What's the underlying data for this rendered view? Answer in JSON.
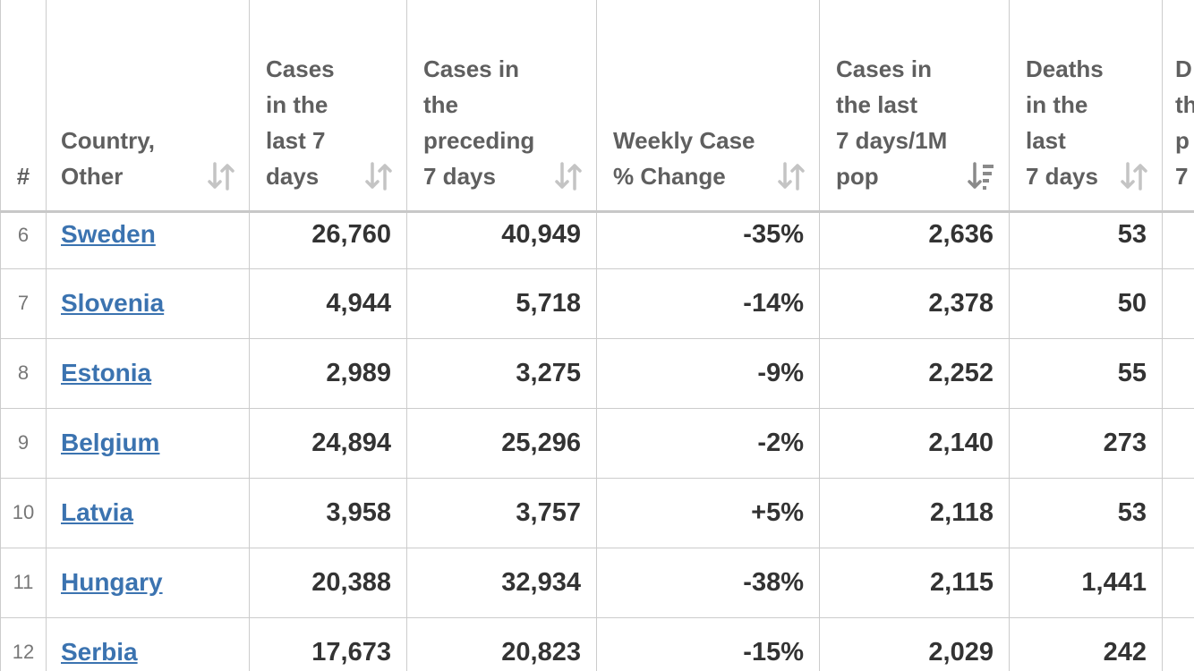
{
  "columns": {
    "index": "#",
    "country": [
      "Country,",
      "Other"
    ],
    "cases7": [
      "Cases",
      "in the",
      "last 7",
      "days"
    ],
    "casesPrev7": [
      "Cases in",
      "the",
      "preceding",
      "7 days"
    ],
    "weeklyChange": [
      "Weekly Case",
      "% Change"
    ],
    "casesPer1M": [
      "Cases in",
      "the last",
      "7 days/1M",
      "pop"
    ],
    "deaths7": [
      "Deaths",
      "in the",
      "last",
      "7 days"
    ],
    "cutoff": [
      "D",
      "th",
      "p",
      "7"
    ]
  },
  "rows": [
    {
      "idx": "6",
      "country": "Sweden",
      "cases7": "26,760",
      "casesPrev7": "40,949",
      "change": "-35%",
      "per1M": "2,636",
      "deaths7": "53"
    },
    {
      "idx": "7",
      "country": "Slovenia",
      "cases7": "4,944",
      "casesPrev7": "5,718",
      "change": "-14%",
      "per1M": "2,378",
      "deaths7": "50"
    },
    {
      "idx": "8",
      "country": "Estonia",
      "cases7": "2,989",
      "casesPrev7": "3,275",
      "change": "-9%",
      "per1M": "2,252",
      "deaths7": "55"
    },
    {
      "idx": "9",
      "country": "Belgium",
      "cases7": "24,894",
      "casesPrev7": "25,296",
      "change": "-2%",
      "per1M": "2,140",
      "deaths7": "273"
    },
    {
      "idx": "10",
      "country": "Latvia",
      "cases7": "3,958",
      "casesPrev7": "3,757",
      "change": "+5%",
      "per1M": "2,118",
      "deaths7": "53"
    },
    {
      "idx": "11",
      "country": "Hungary",
      "cases7": "20,388",
      "casesPrev7": "32,934",
      "change": "-38%",
      "per1M": "2,115",
      "deaths7": "1,441"
    },
    {
      "idx": "12",
      "country": "Serbia",
      "cases7": "17,673",
      "casesPrev7": "20,823",
      "change": "-15%",
      "per1M": "2,029",
      "deaths7": "242"
    }
  ],
  "icons": {
    "sortUnsorted": "sort-both-arrows-icon",
    "sortActive": "sort-descending-icon"
  },
  "colors": {
    "link": "#3b73b0",
    "header": "#5f5f5f",
    "cell": "#333333",
    "border": "#cccccc",
    "iconGray": "#c4c4c4",
    "iconActive": "#8a8a8a"
  }
}
